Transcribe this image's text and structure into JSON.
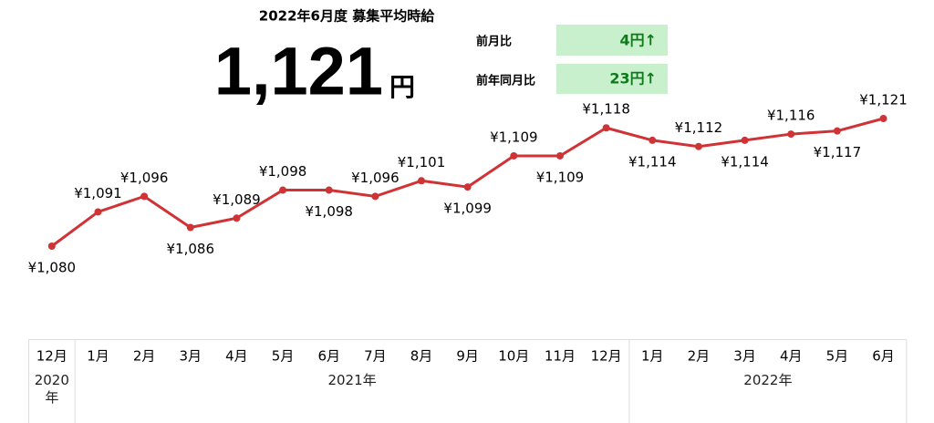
{
  "header": {
    "title": "2022年6月度 募集平均時給",
    "amount": "1,121",
    "unit": "円",
    "comparisons": [
      {
        "label": "前月比",
        "value": "4円↑"
      },
      {
        "label": "前年同月比",
        "value": "23円↑"
      }
    ]
  },
  "chart_data": {
    "type": "line",
    "categories": [
      "12月",
      "1月",
      "2月",
      "3月",
      "4月",
      "5月",
      "6月",
      "7月",
      "8月",
      "9月",
      "10月",
      "11月",
      "12月",
      "1月",
      "2月",
      "3月",
      "4月",
      "5月",
      "6月"
    ],
    "year_groups": [
      {
        "label": "2020年",
        "count": 1
      },
      {
        "label": "2021年",
        "count": 12
      },
      {
        "label": "2022年",
        "count": 6
      }
    ],
    "series": [
      {
        "name": "募集平均時給",
        "color": "#cf3336",
        "values": [
          1080,
          1091,
          1096,
          1086,
          1089,
          1098,
          1098,
          1096,
          1101,
          1099,
          1109,
          1109,
          1118,
          1114,
          1112,
          1114,
          1116,
          1117,
          1121
        ],
        "value_labels": [
          "¥1,080",
          "¥1,091",
          "¥1,096",
          "¥1,086",
          "¥1,089",
          "¥1,098",
          "¥1,098",
          "¥1,096",
          "¥1,101",
          "¥1,099",
          "¥1,109",
          "¥1,109",
          "¥1,118",
          "¥1,114",
          "¥1,112",
          "¥1,114",
          "¥1,116",
          "¥1,117",
          "¥1,121"
        ]
      }
    ],
    "ylim": [
      1080,
      1121
    ]
  }
}
